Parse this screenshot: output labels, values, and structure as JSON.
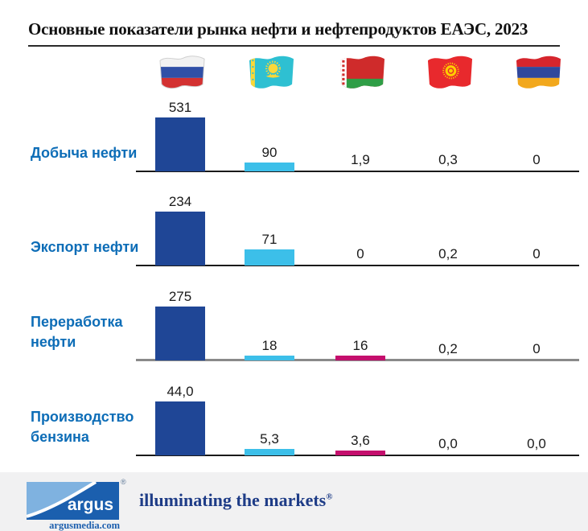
{
  "title": "Основные показатели рынка нефти и нефтепродуктов ЕАЭС, 2023",
  "flags": [
    {
      "id": "russia",
      "icon": "russia-flag-icon"
    },
    {
      "id": "kazakhstan",
      "icon": "kazakhstan-flag-icon"
    },
    {
      "id": "belarus",
      "icon": "belarus-flag-icon"
    },
    {
      "id": "kyrgyzstan",
      "icon": "kyrgyzstan-flag-icon"
    },
    {
      "id": "armenia",
      "icon": "armenia-flag-icon"
    }
  ],
  "chart_data": {
    "type": "bar",
    "layout_hint": "4 independent rows (small multiples), each row scaled to its own max; flags act as column headers; values with no visible bar are printed above the axis line",
    "categories": [
      "Добыча нефти",
      "Экспорт нефти",
      "Переработка нефти",
      "Производство бензина"
    ],
    "columns": [
      "russia",
      "kazakhstan",
      "belarus",
      "kyrgyzstan",
      "armenia"
    ],
    "rows": [
      {
        "category": "Добыча нефти",
        "values": [
          531,
          90,
          1.9,
          0.3,
          0
        ],
        "labels": [
          "531",
          "90",
          "1,9",
          "0,3",
          "0"
        ]
      },
      {
        "category": "Экспорт нефти",
        "values": [
          234,
          71,
          0,
          0.2,
          0
        ],
        "labels": [
          "234",
          "71",
          "0",
          "0,2",
          "0"
        ]
      },
      {
        "category": "Переработка нефти",
        "values": [
          275,
          18,
          16,
          0.2,
          0
        ],
        "labels": [
          "275",
          "18",
          "16",
          "0,2",
          "0"
        ]
      },
      {
        "category": "Производство бензина",
        "values": [
          44.0,
          5.3,
          3.6,
          0.0,
          0.0
        ],
        "labels": [
          "44,0",
          "5,3",
          "3,6",
          "0,0",
          "0,0"
        ]
      }
    ],
    "bar_colors": {
      "russia": "#1f4696",
      "kazakhstan": "#3cbfe9",
      "belarus": "#c40f6d",
      "kyrgyzstan": "#1f4696",
      "armenia": "#1f4696"
    }
  },
  "colors": {
    "category_label": "#0d6db7",
    "value_label": "#1a1a1a",
    "axis_line": "#1a1a1a",
    "axis_line_refining_row": "#8a8a8a",
    "footer_background": "#f1f1f2",
    "tagline_text": "#1e3c87",
    "logo_blue_dark": "#1b5fae",
    "logo_blue_light": "#7fb2e0"
  },
  "footer": {
    "logo_text": "argus",
    "logo_registered": "®",
    "logo_domain": "argusmedia.com",
    "tagline": "illuminating the markets",
    "tagline_registered": "®"
  }
}
